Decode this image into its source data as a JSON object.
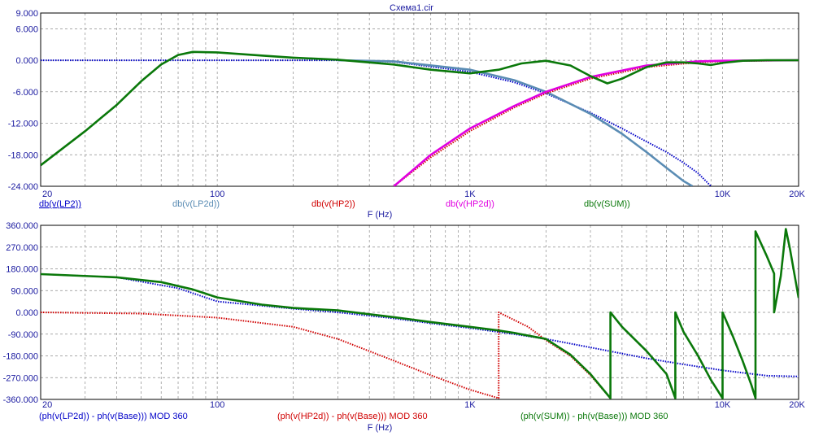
{
  "window_title": "Схема1.cir",
  "colors": {
    "LP2": "#0000c8",
    "LP2d": "#5a8cb4",
    "HP2": "#d00000",
    "HP2d": "#e000e0",
    "SUM": "#0a780a",
    "axis_text": "#1a1aa0",
    "grid": "#8c8c8c"
  },
  "chart_data": [
    {
      "type": "line",
      "title": "Схема1.cir",
      "xlabel": "F (Hz)",
      "x_scale": "log",
      "xlim": [
        20,
        20000
      ],
      "ylim": [
        -24,
        9
      ],
      "grid": true,
      "x_tick_labels": [
        "20",
        "100",
        "1K",
        "10K",
        "20K"
      ],
      "x_ticks": [
        20,
        100,
        1000,
        10000,
        20000
      ],
      "y_tick_labels": [
        "9.000",
        "6.000",
        "0.000",
        "-6.000",
        "-12.000",
        "-18.000",
        "-24.000"
      ],
      "y_ticks": [
        9,
        6,
        0,
        -6,
        -12,
        -18,
        -24
      ],
      "series": [
        {
          "name": "db(v(LP2))",
          "color_key": "LP2",
          "style": "dotted",
          "x": [
            20,
            100,
            300,
            500,
            1000,
            1500,
            2000,
            3000,
            4000,
            5000,
            6000,
            7000,
            8000,
            9000
          ],
          "y": [
            0,
            0,
            0,
            -0.3,
            -2.2,
            -4.2,
            -6.3,
            -10,
            -13,
            -15.5,
            -17.5,
            -19.5,
            -21.5,
            -24
          ]
        },
        {
          "name": "db(v(LP2d))",
          "color_key": "LP2d",
          "style": "solid",
          "x": [
            300,
            500,
            1000,
            1500,
            2000,
            3000,
            4000,
            5000,
            6000,
            7000,
            7600
          ],
          "y": [
            0,
            -0.2,
            -1.8,
            -3.8,
            -6.0,
            -10.2,
            -14,
            -17.5,
            -20.5,
            -23,
            -24
          ]
        },
        {
          "name": "db(v(HP2))",
          "color_key": "HP2",
          "style": "dotted",
          "x": [
            500,
            700,
            1000,
            1500,
            2000,
            3000,
            5000,
            8000,
            10000,
            20000
          ],
          "y": [
            -24,
            -18.5,
            -13.5,
            -9,
            -6.3,
            -3.5,
            -1.3,
            -0.4,
            -0.2,
            0
          ]
        },
        {
          "name": "db(v(HP2d))",
          "color_key": "HP2d",
          "style": "solid",
          "x": [
            500,
            700,
            1000,
            1500,
            2000,
            3000,
            5000,
            8000,
            10000,
            20000
          ],
          "y": [
            -24,
            -18,
            -13,
            -8.7,
            -6.0,
            -3.2,
            -1.0,
            -0.2,
            -0.1,
            0
          ]
        },
        {
          "name": "db(v(SUM))",
          "color_key": "SUM",
          "style": "solid",
          "x": [
            20,
            30,
            40,
            50,
            60,
            70,
            80,
            100,
            150,
            200,
            300,
            500,
            700,
            1000,
            1300,
            1600,
            2000,
            2500,
            3000,
            3500,
            4000,
            5000,
            6000,
            7000,
            8000,
            9000,
            10000,
            12000,
            15000,
            20000
          ],
          "y": [
            -20,
            -13.5,
            -8.5,
            -4,
            -0.8,
            1.0,
            1.6,
            1.5,
            0.9,
            0.5,
            0.1,
            -0.8,
            -1.8,
            -2.5,
            -1.8,
            -0.6,
            -0.1,
            -1.0,
            -3.0,
            -4.4,
            -3.5,
            -1.3,
            -0.4,
            -0.4,
            -0.6,
            -0.9,
            -0.5,
            -0.1,
            0,
            0
          ]
        }
      ]
    },
    {
      "type": "line",
      "title": "",
      "xlabel": "F (Hz)",
      "x_scale": "log",
      "xlim": [
        20,
        20000
      ],
      "ylim": [
        -360,
        360
      ],
      "grid": true,
      "x_tick_labels": [
        "20",
        "100",
        "1K",
        "10K",
        "20K"
      ],
      "x_ticks": [
        20,
        100,
        1000,
        10000,
        20000
      ],
      "y_tick_labels": [
        "360.000",
        "270.000",
        "180.000",
        "90.000",
        "0.000",
        "-90.000",
        "-180.000",
        "-270.000",
        "-360.000"
      ],
      "y_ticks": [
        360,
        270,
        180,
        90,
        0,
        -90,
        -180,
        -270,
        -360
      ],
      "series": [
        {
          "name": "(ph(v(LP2d)) - ph(v(Base))) MOD 360",
          "color_key": "LP2",
          "style": "dotted",
          "x": [
            20,
            40,
            70,
            100,
            200,
            300,
            500,
            700,
            1000,
            1500,
            2000,
            3000,
            5000,
            7000,
            10000,
            15000,
            20000
          ],
          "y": [
            158,
            145,
            100,
            45,
            15,
            0,
            -25,
            -45,
            -65,
            -90,
            -110,
            -145,
            -190,
            -215,
            -240,
            -262,
            -265
          ]
        },
        {
          "name": "(ph(v(HP2d)) - ph(v(Base))) MOD 360",
          "color_key": "HP2",
          "style": "dotted",
          "x": [
            20,
            50,
            100,
            200,
            300,
            500,
            700,
            1000,
            1300,
            1300,
            1700,
            2000,
            2500,
            3000,
            3600
          ],
          "y": [
            0,
            -5,
            -22,
            -60,
            -110,
            -200,
            -260,
            -320,
            -355,
            0,
            -60,
            -115,
            -180,
            -260,
            -355
          ]
        },
        {
          "name": "(ph(v(SUM)) - ph(v(Base))) MOD 360",
          "color_key": "SUM",
          "style": "solid",
          "x": [
            20,
            40,
            60,
            80,
            100,
            150,
            200,
            300,
            500,
            700,
            1000,
            1300,
            1500,
            2000,
            2500,
            3000,
            3600,
            3600,
            4000,
            5000,
            6000,
            6500,
            6500,
            7000,
            8000,
            9000,
            10000,
            10000,
            11000,
            12000,
            13000,
            13500,
            13500,
            15000,
            16000,
            16000,
            17000,
            17800,
            17800,
            18500,
            20000
          ],
          "y": [
            158,
            145,
            125,
            95,
            62,
            32,
            18,
            8,
            -20,
            -40,
            -60,
            -75,
            -85,
            -110,
            -175,
            -255,
            -355,
            0,
            -60,
            -160,
            -255,
            -355,
            0,
            -80,
            -180,
            -280,
            -355,
            0,
            -100,
            -200,
            -300,
            -355,
            335,
            230,
            160,
            0,
            150,
            345,
            345,
            260,
            60
          ]
        }
      ]
    }
  ],
  "panels": [
    {
      "legend": [
        {
          "text": "db(v(LP2))",
          "color_key": "LP2",
          "underline": true
        },
        {
          "text": "db(v(LP2d))",
          "color_key": "LP2d",
          "underline": false
        },
        {
          "text": "db(v(HP2))",
          "color_key": "HP2",
          "underline": false
        },
        {
          "text": "db(v(HP2d))",
          "color_key": "HP2d",
          "underline": false
        },
        {
          "text": "db(v(SUM))",
          "color_key": "SUM",
          "underline": false
        }
      ]
    },
    {
      "legend": [
        {
          "text": "(ph(v(LP2d)) - ph(v(Base))) MOD 360",
          "color_key": "LP2",
          "underline": false
        },
        {
          "text": "(ph(v(HP2d)) - ph(v(Base))) MOD 360",
          "color_key": "HP2",
          "underline": false
        },
        {
          "text": "(ph(v(SUM)) - ph(v(Base))) MOD 360",
          "color_key": "SUM",
          "underline": false
        }
      ]
    }
  ]
}
